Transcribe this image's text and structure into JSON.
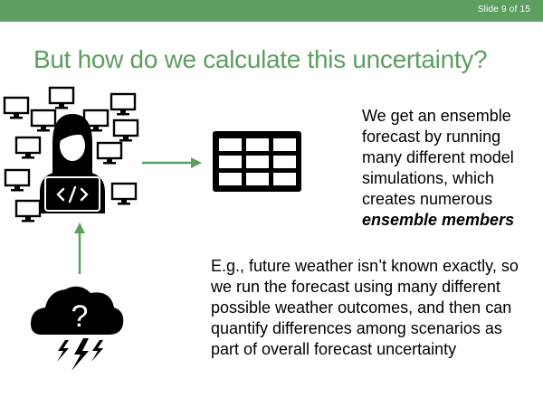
{
  "slide": {
    "number_label": "Slide 9 of 15",
    "title": "But how do we calculate this uncertainty?",
    "paragraph1": {
      "text": "We get an ensemble forecast by running many different model simulations, which creates numerous",
      "emphasis": "ensemble members"
    },
    "paragraph2": "E.g., future weather isn’t known exactly, so we run the forecast using many different possible weather outcomes, and then can quantify differences among scenarios as part of overall forecast uncertainty",
    "storm_symbol": "?"
  },
  "icons": [
    "monitor-icon",
    "person-coder-icon",
    "code-icon",
    "table-grid-icon",
    "storm-cloud-icon",
    "lightning-icon"
  ],
  "colors": {
    "accent": "#5c9f5f",
    "text": "#000000",
    "background": "#ffffff"
  }
}
